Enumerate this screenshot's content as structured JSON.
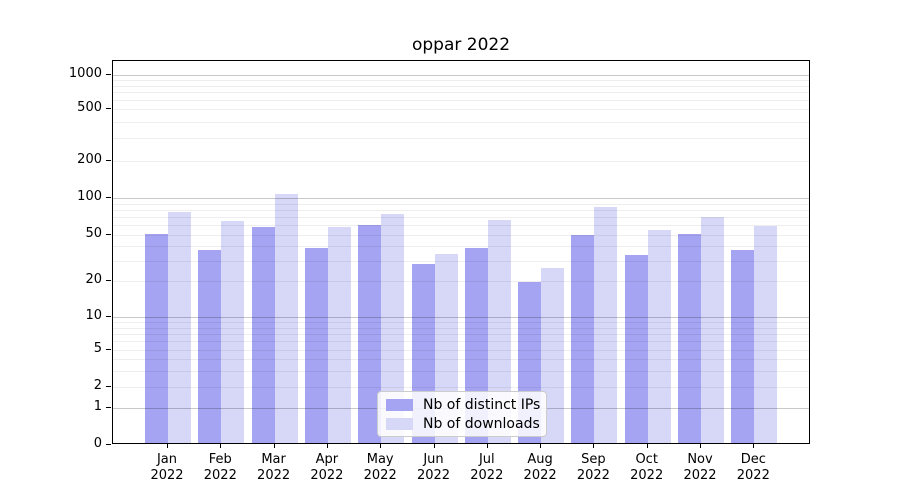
{
  "title": "oppar 2022",
  "chart_data": {
    "type": "bar",
    "title": "oppar 2022",
    "categories": [
      "Jan",
      "Feb",
      "Mar",
      "Apr",
      "May",
      "Jun",
      "Jul",
      "Aug",
      "Sep",
      "Oct",
      "Nov",
      "Dec"
    ],
    "x_year_label": "2022",
    "series": [
      {
        "name": "Nb of distinct IPs",
        "color": "#a4a4f2",
        "values": [
          49,
          36,
          56,
          37,
          58,
          27,
          37,
          19,
          48,
          32,
          49,
          36
        ]
      },
      {
        "name": "Nb of downloads",
        "color": "#d7d7f8",
        "values": [
          74,
          63,
          103,
          56,
          72,
          33,
          64,
          25,
          81,
          53,
          68,
          57
        ]
      }
    ],
    "y_axis": {
      "scale": "log-like",
      "ticks": [
        0,
        1,
        2,
        5,
        10,
        20,
        50,
        100,
        200,
        500,
        1000
      ],
      "ylim": [
        0,
        1000
      ]
    },
    "xlabel": "",
    "ylabel": "",
    "grid": "on",
    "legend_position": "lower center",
    "colors": {
      "spine": "#000000",
      "major_grid": "#c8c8c8",
      "minor_grid": "#eaeaea",
      "background": "#ffffff"
    }
  }
}
